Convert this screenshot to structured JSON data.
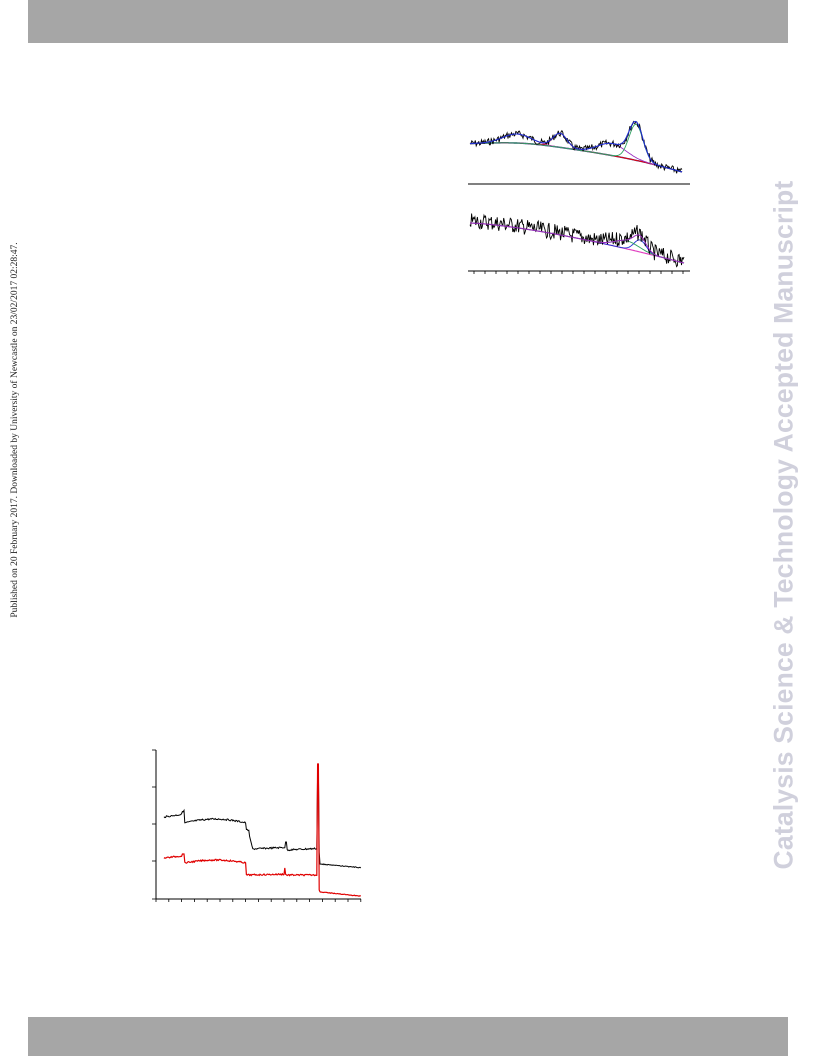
{
  "header_band": {
    "color": "#a6a6a6"
  },
  "footer_band": {
    "color": "#a6a6a6"
  },
  "side_note": "Published on 20 February 2017. Downloaded by University of Newcastle on 23/02/2017 02:28:47.",
  "watermark": "Catalysis Science & Technology Accepted Manuscript",
  "colors": {
    "black": "#000000",
    "red": "#e00000",
    "blue": "#1f2fd0",
    "magenta": "#e040c0",
    "purple": "#9b30c0",
    "green": "#2ca060",
    "navy": "#101060"
  },
  "figures": {
    "spectra": {
      "panels": 2,
      "traces": [
        "raw",
        "fit",
        "background",
        "components"
      ]
    },
    "time_series": {
      "series": 2,
      "series_colors": [
        "#000000",
        "#e00000"
      ]
    }
  }
}
